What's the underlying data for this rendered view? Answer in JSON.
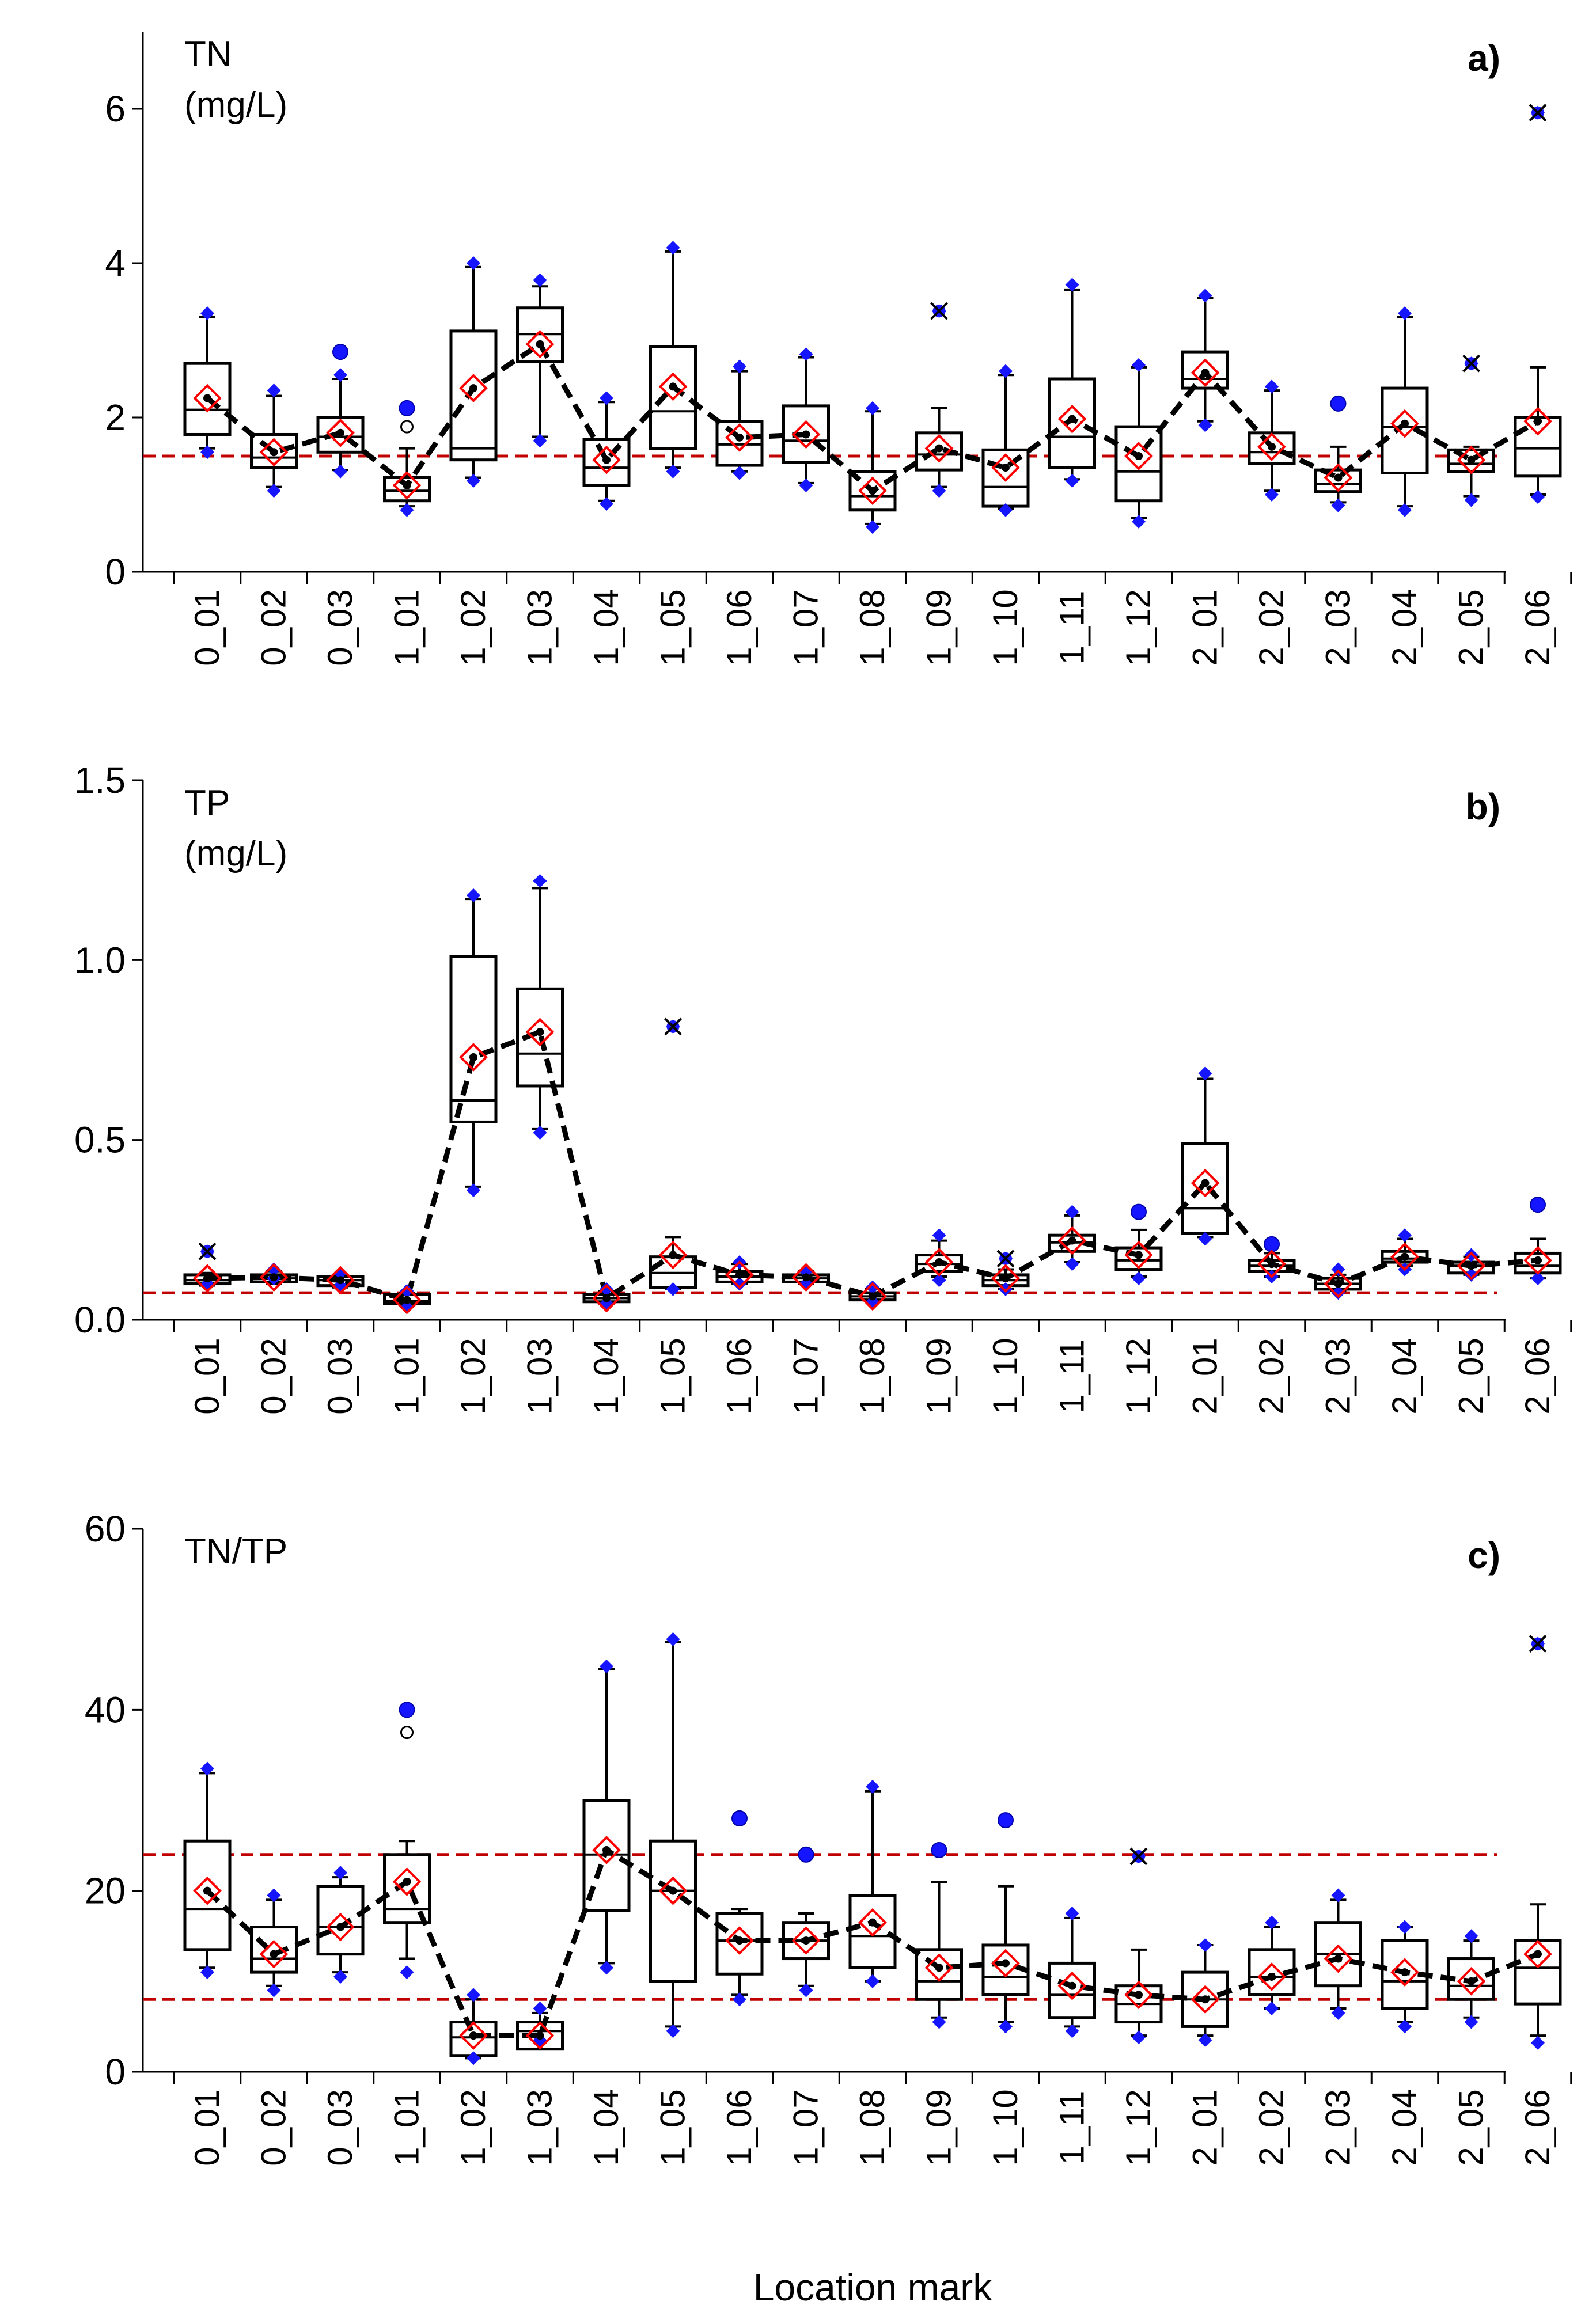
{
  "figure_xlabel": "Location mark",
  "chart_data": [
    {
      "type": "box",
      "panel_label": "a)",
      "ylabel_line1": "TN",
      "ylabel_line2": "(mg/L)",
      "ylim": [
        0,
        7
      ],
      "yticks": [
        0,
        2,
        4,
        6
      ],
      "ytick_labels": [
        "0",
        "2",
        "4",
        "6"
      ],
      "categories": [
        "0_01",
        "0_02",
        "0_03",
        "1_01",
        "1_02",
        "1_03",
        "1_04",
        "1_05",
        "1_06",
        "1_07",
        "1_08",
        "1_09",
        "1_10",
        "1_11",
        "1_12",
        "2_01",
        "2_02",
        "2_03",
        "2_04",
        "2_05",
        "2_06"
      ],
      "q1": [
        1.78,
        1.35,
        1.55,
        0.92,
        1.45,
        2.72,
        1.12,
        1.6,
        1.38,
        1.42,
        0.8,
        1.32,
        0.85,
        1.35,
        0.92,
        2.38,
        1.4,
        1.04,
        1.28,
        1.3,
        1.24
      ],
      "median": [
        2.1,
        1.48,
        1.75,
        1.05,
        1.6,
        3.08,
        1.35,
        2.08,
        1.65,
        1.7,
        0.98,
        1.52,
        1.1,
        1.75,
        1.3,
        2.5,
        1.55,
        1.14,
        1.88,
        1.4,
        1.6
      ],
      "q3": [
        2.7,
        1.78,
        2.0,
        1.22,
        3.12,
        3.42,
        1.72,
        2.92,
        1.95,
        2.15,
        1.3,
        1.8,
        1.58,
        2.5,
        1.88,
        2.85,
        1.8,
        1.32,
        2.38,
        1.58,
        2.0
      ],
      "whisker_low": [
        1.6,
        1.1,
        1.32,
        0.85,
        1.22,
        1.75,
        0.92,
        1.35,
        1.3,
        1.15,
        0.62,
        1.1,
        0.82,
        1.2,
        0.7,
        1.95,
        1.05,
        0.9,
        0.85,
        0.98,
        1.0
      ],
      "whisker_high": [
        3.3,
        2.28,
        2.5,
        1.6,
        3.95,
        3.7,
        2.2,
        4.15,
        2.6,
        2.78,
        2.08,
        2.12,
        2.55,
        3.65,
        2.65,
        3.55,
        2.35,
        1.62,
        3.3,
        1.62,
        2.65
      ],
      "mean": [
        2.25,
        1.55,
        1.8,
        1.12,
        2.38,
        2.95,
        1.45,
        2.4,
        1.74,
        1.78,
        1.05,
        1.6,
        1.35,
        1.98,
        1.5,
        2.58,
        1.62,
        1.22,
        1.92,
        1.45,
        1.95
      ],
      "min_marker": [
        1.55,
        1.05,
        1.3,
        0.8,
        1.18,
        1.7,
        0.88,
        1.3,
        1.28,
        1.12,
        0.58,
        1.05,
        0.8,
        1.18,
        0.65,
        1.9,
        1.0,
        0.86,
        0.8,
        0.93,
        0.97
      ],
      "max_marker": [
        3.35,
        2.35,
        2.55,
        2.12,
        4.0,
        3.78,
        2.25,
        4.2,
        2.66,
        2.82,
        2.12,
        3.38,
        2.6,
        3.72,
        2.68,
        3.58,
        2.4,
        2.18,
        3.35,
        2.7,
        5.95
      ],
      "outliers_mild": [
        {
          "category": "0_03",
          "value": 2.85
        },
        {
          "category": "1_01",
          "value": 2.12
        },
        {
          "category": "2_03",
          "value": 2.18
        }
      ],
      "outliers_open": [
        {
          "category": "1_01",
          "value": 1.88
        }
      ],
      "outliers_extreme": [
        {
          "category": "1_09",
          "value": 3.38
        },
        {
          "category": "2_05",
          "value": 2.7
        },
        {
          "category": "2_06",
          "value": 5.95
        }
      ],
      "reference_lines": [
        1.5
      ]
    },
    {
      "type": "box",
      "panel_label": "b)",
      "ylabel_line1": "TP",
      "ylabel_line2": "(mg/L)",
      "ylim": [
        0,
        1.5
      ],
      "yticks": [
        0,
        0.5,
        1.0,
        1.5
      ],
      "ytick_labels": [
        "0.0",
        "0.5",
        "1.0",
        "1.5"
      ],
      "categories": [
        "0_01",
        "0_02",
        "0_03",
        "1_01",
        "1_02",
        "1_03",
        "1_04",
        "1_05",
        "1_06",
        "1_07",
        "1_08",
        "1_09",
        "1_10",
        "1_11",
        "1_12",
        "2_01",
        "2_02",
        "2_03",
        "2_04",
        "2_05",
        "2_06"
      ],
      "q1": [
        0.1,
        0.105,
        0.095,
        0.045,
        0.55,
        0.65,
        0.05,
        0.09,
        0.105,
        0.105,
        0.055,
        0.135,
        0.095,
        0.19,
        0.14,
        0.24,
        0.135,
        0.085,
        0.16,
        0.13,
        0.13
      ],
      "median": [
        0.11,
        0.115,
        0.11,
        0.052,
        0.61,
        0.74,
        0.06,
        0.13,
        0.12,
        0.115,
        0.065,
        0.155,
        0.11,
        0.215,
        0.165,
        0.31,
        0.15,
        0.1,
        0.17,
        0.15,
        0.15
      ],
      "q3": [
        0.125,
        0.125,
        0.12,
        0.07,
        1.01,
        0.92,
        0.07,
        0.175,
        0.135,
        0.125,
        0.075,
        0.18,
        0.125,
        0.235,
        0.2,
        0.49,
        0.165,
        0.115,
        0.19,
        0.16,
        0.185
      ],
      "whisker_low": [
        0.095,
        0.1,
        0.09,
        0.04,
        0.37,
        0.53,
        0.045,
        0.085,
        0.1,
        0.1,
        0.05,
        0.12,
        0.085,
        0.16,
        0.12,
        0.23,
        0.12,
        0.08,
        0.15,
        0.125,
        0.115
      ],
      "whisker_high": [
        0.13,
        0.135,
        0.125,
        0.075,
        1.17,
        1.2,
        0.08,
        0.23,
        0.155,
        0.135,
        0.085,
        0.22,
        0.14,
        0.29,
        0.25,
        0.67,
        0.185,
        0.125,
        0.225,
        0.175,
        0.225
      ],
      "mean": [
        0.115,
        0.118,
        0.11,
        0.055,
        0.73,
        0.8,
        0.06,
        0.18,
        0.125,
        0.118,
        0.065,
        0.16,
        0.115,
        0.22,
        0.18,
        0.38,
        0.155,
        0.1,
        0.175,
        0.15,
        0.165
      ],
      "min_marker": [
        0.1,
        0.115,
        0.095,
        0.035,
        0.36,
        0.52,
        0.045,
        0.085,
        0.1,
        0.1,
        0.05,
        0.11,
        0.085,
        0.155,
        0.115,
        0.225,
        0.12,
        0.075,
        0.14,
        0.125,
        0.115
      ],
      "max_marker": [
        0.19,
        0.14,
        0.13,
        0.08,
        1.18,
        1.22,
        0.085,
        0.815,
        0.16,
        0.135,
        0.09,
        0.235,
        0.17,
        0.3,
        0.3,
        0.685,
        0.21,
        0.14,
        0.235,
        0.18,
        0.32
      ],
      "outliers_mild": [
        {
          "category": "1_12",
          "value": 0.3
        },
        {
          "category": "2_02",
          "value": 0.21
        },
        {
          "category": "2_06",
          "value": 0.32
        }
      ],
      "outliers_open": [],
      "outliers_extreme": [
        {
          "category": "0_01",
          "value": 0.19
        },
        {
          "category": "1_05",
          "value": 0.815
        },
        {
          "category": "1_10",
          "value": 0.17
        }
      ],
      "reference_lines": [
        0.075
      ]
    },
    {
      "type": "box",
      "panel_label": "c)",
      "ylabel_line1": "TN/TP",
      "ylabel_line2": "",
      "ylim": [
        0,
        60
      ],
      "yticks": [
        0,
        20,
        40,
        60
      ],
      "ytick_labels": [
        "0",
        "20",
        "40",
        "60"
      ],
      "categories": [
        "0_01",
        "0_02",
        "0_03",
        "1_01",
        "1_02",
        "1_03",
        "1_04",
        "1_05",
        "1_06",
        "1_07",
        "1_08",
        "1_09",
        "1_10",
        "1_11",
        "1_12",
        "2_01",
        "2_02",
        "2_03",
        "2_04",
        "2_05",
        "2_06"
      ],
      "q1": [
        13.5,
        11.0,
        13.0,
        16.5,
        1.8,
        2.5,
        17.8,
        10.0,
        10.8,
        12.5,
        11.5,
        8.0,
        8.5,
        6.0,
        5.5,
        5.0,
        8.5,
        9.5,
        7.0,
        8.0,
        7.5
      ],
      "median": [
        18.0,
        12.5,
        16.0,
        18.0,
        3.8,
        4.5,
        24.0,
        20.0,
        14.5,
        14.5,
        15.0,
        10.0,
        10.5,
        8.5,
        7.5,
        8.0,
        10.5,
        13.0,
        10.0,
        9.5,
        11.5
      ],
      "q3": [
        25.5,
        16.0,
        20.5,
        24.0,
        5.5,
        5.5,
        30.0,
        25.5,
        17.5,
        16.5,
        19.5,
        13.5,
        14.0,
        12.0,
        9.5,
        11.0,
        13.5,
        16.5,
        14.5,
        12.5,
        14.5
      ],
      "whisker_low": [
        11.5,
        9.5,
        11.0,
        12.5,
        1.5,
        3.0,
        12.0,
        5.0,
        8.5,
        9.5,
        10.0,
        6.0,
        5.5,
        5.0,
        4.0,
        4.0,
        7.0,
        7.0,
        5.5,
        6.0,
        4.0
      ],
      "whisker_high": [
        33.0,
        19.0,
        21.5,
        25.5,
        8.0,
        6.5,
        44.5,
        47.5,
        18.0,
        17.5,
        31.0,
        21.0,
        20.5,
        17.0,
        13.5,
        14.0,
        16.0,
        19.0,
        16.0,
        14.5,
        18.5
      ],
      "mean": [
        20.0,
        13.0,
        16.0,
        21.0,
        4.0,
        4.0,
        24.5,
        20.0,
        14.5,
        14.5,
        16.5,
        11.5,
        12.0,
        9.5,
        8.5,
        8.0,
        10.5,
        12.5,
        11.0,
        10.0,
        13.0
      ],
      "min_marker": [
        11.0,
        9.0,
        10.5,
        11.0,
        1.5,
        3.5,
        11.5,
        4.5,
        8.0,
        9.0,
        10.0,
        5.5,
        5.0,
        4.5,
        3.8,
        3.5,
        7.0,
        6.5,
        5.0,
        5.5,
        3.2
      ],
      "max_marker": [
        33.5,
        19.5,
        22.0,
        40.0,
        8.5,
        7.0,
        44.8,
        47.8,
        28.0,
        24.0,
        31.5,
        24.5,
        27.8,
        17.5,
        23.8,
        14.0,
        16.5,
        19.5,
        16.0,
        15.0,
        47.3
      ],
      "outliers_mild": [
        {
          "category": "1_01",
          "value": 40.0
        },
        {
          "category": "1_06",
          "value": 28.0
        },
        {
          "category": "1_07",
          "value": 24.0
        },
        {
          "category": "1_09",
          "value": 24.5
        },
        {
          "category": "1_10",
          "value": 27.8
        }
      ],
      "outliers_open": [
        {
          "category": "1_01",
          "value": 37.5
        }
      ],
      "outliers_extreme": [
        {
          "category": "1_12",
          "value": 23.8
        },
        {
          "category": "2_06",
          "value": 47.3
        }
      ],
      "reference_lines": [
        24,
        8
      ]
    }
  ]
}
